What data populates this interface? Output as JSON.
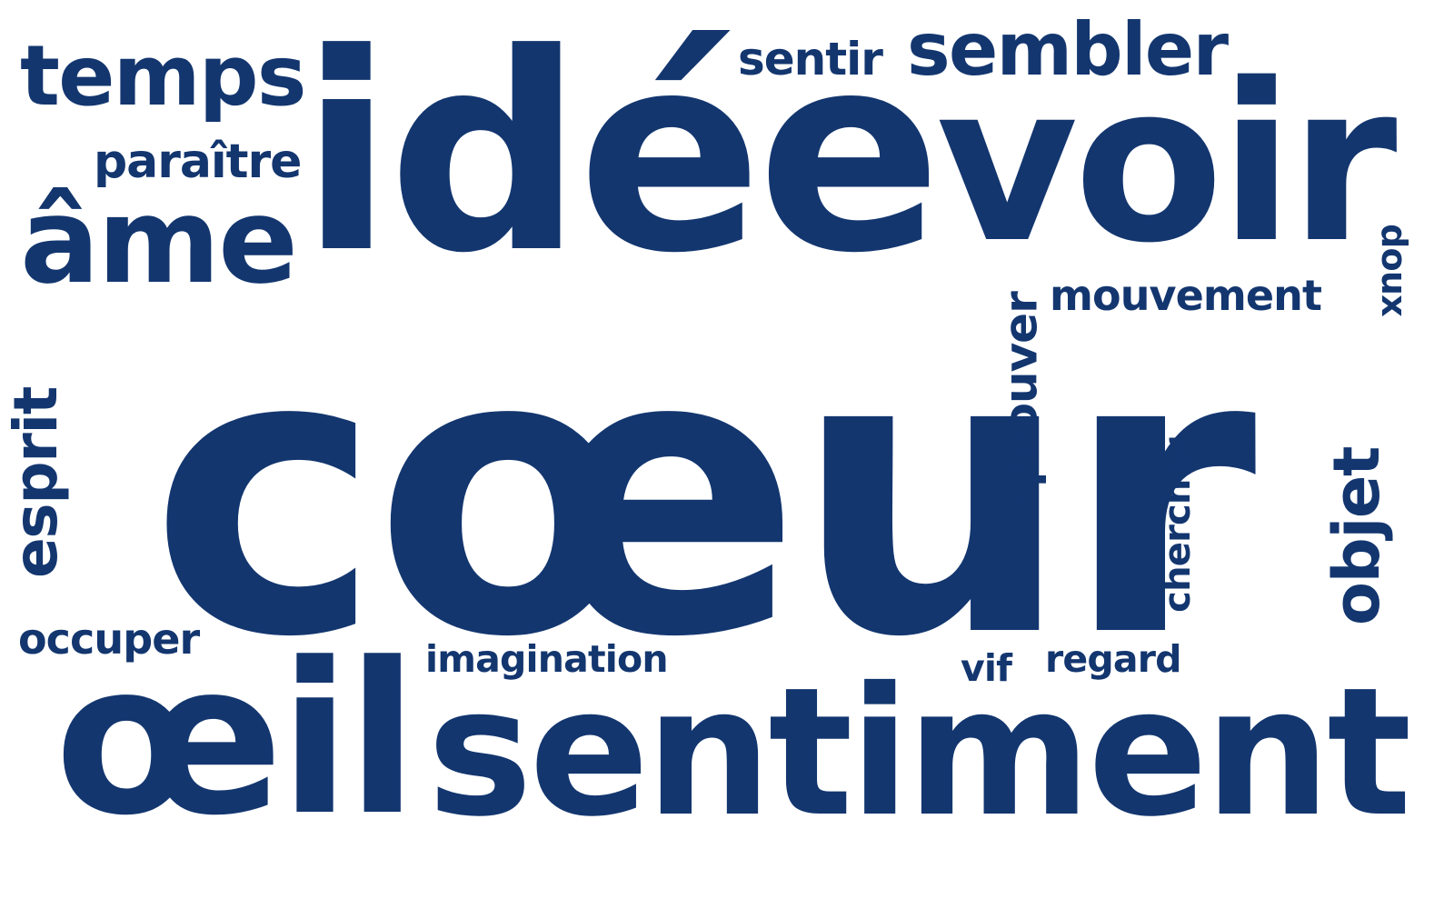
{
  "cloud": {
    "color": "#13366f",
    "words": [
      {
        "text": "cœur",
        "orientation": "horizontal"
      },
      {
        "text": "idée",
        "orientation": "horizontal"
      },
      {
        "text": "voir",
        "orientation": "horizontal"
      },
      {
        "text": "œil",
        "orientation": "horizontal"
      },
      {
        "text": "sentiment",
        "orientation": "horizontal"
      },
      {
        "text": "âme",
        "orientation": "horizontal"
      },
      {
        "text": "temps",
        "orientation": "horizontal"
      },
      {
        "text": "sembler",
        "orientation": "horizontal"
      },
      {
        "text": "esprit",
        "orientation": "vertical"
      },
      {
        "text": "objet",
        "orientation": "vertical"
      },
      {
        "text": "éprouver",
        "orientation": "vertical"
      },
      {
        "text": "paraître",
        "orientation": "horizontal"
      },
      {
        "text": "sentir",
        "orientation": "horizontal"
      },
      {
        "text": "mouvement",
        "orientation": "horizontal"
      },
      {
        "text": "chercher",
        "orientation": "vertical"
      },
      {
        "text": "doux",
        "orientation": "vertical"
      },
      {
        "text": "occuper",
        "orientation": "horizontal"
      },
      {
        "text": "imagination",
        "orientation": "horizontal"
      },
      {
        "text": "regard",
        "orientation": "horizontal"
      },
      {
        "text": "vif",
        "orientation": "horizontal"
      }
    ]
  }
}
